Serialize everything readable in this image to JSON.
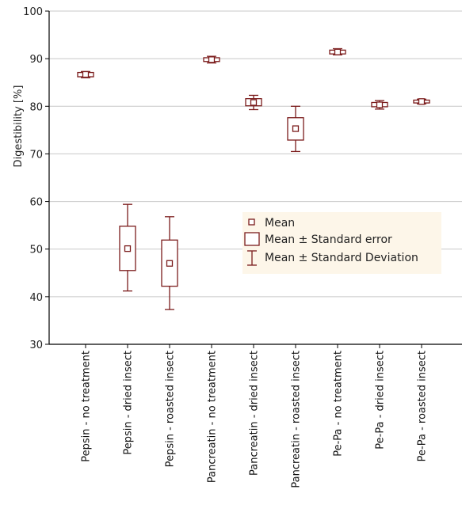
{
  "chart_data": {
    "type": "box",
    "title": "",
    "xlabel": "",
    "ylabel": "Digestibility [%]",
    "ylim": [
      30,
      100
    ],
    "yticks": [
      30,
      40,
      50,
      60,
      70,
      80,
      90,
      100
    ],
    "grid": "horizontal",
    "legend_position": "center-right",
    "colors": {
      "box": "#7b1c1c",
      "grid": "#c8c8c8",
      "legend_bg": "#fdf6e9"
    },
    "legend": {
      "mean": "Mean",
      "se": "Mean ± Standard error",
      "sd": "Mean ± Standard Deviation"
    },
    "categories": [
      "Pepsin - no treatment",
      "Pepsin - dried insect",
      "Pepsin - roasted insect",
      "Pancreatin - no treatment",
      "Pancreatin - dried insect",
      "Pancreatin - roasted insect",
      "Pe-Pa - no treatment",
      "Pe-Pa - dried insect",
      "Pe-Pa - roasted insect"
    ],
    "series": [
      {
        "mean": 86.7,
        "se_low": 86.2,
        "se_high": 87.1,
        "sd_low": 86.0,
        "sd_high": 87.3
      },
      {
        "mean": 50.1,
        "se_low": 45.5,
        "se_high": 54.8,
        "sd_low": 41.2,
        "sd_high": 59.4
      },
      {
        "mean": 47.0,
        "se_low": 42.2,
        "se_high": 51.9,
        "sd_low": 37.3,
        "sd_high": 56.8
      },
      {
        "mean": 89.8,
        "se_low": 89.4,
        "se_high": 90.2,
        "sd_low": 89.1,
        "sd_high": 90.5
      },
      {
        "mean": 80.8,
        "se_low": 80.1,
        "se_high": 81.6,
        "sd_low": 79.3,
        "sd_high": 82.3
      },
      {
        "mean": 75.3,
        "se_low": 72.9,
        "se_high": 77.6,
        "sd_low": 70.5,
        "sd_high": 80.0
      },
      {
        "mean": 91.4,
        "se_low": 91.0,
        "se_high": 91.8,
        "sd_low": 90.8,
        "sd_high": 92.1
      },
      {
        "mean": 80.3,
        "se_low": 79.9,
        "se_high": 80.8,
        "sd_low": 79.4,
        "sd_high": 81.2
      },
      {
        "mean": 81.0,
        "se_low": 80.7,
        "se_high": 81.3,
        "sd_low": 80.5,
        "sd_high": 81.5
      }
    ]
  }
}
